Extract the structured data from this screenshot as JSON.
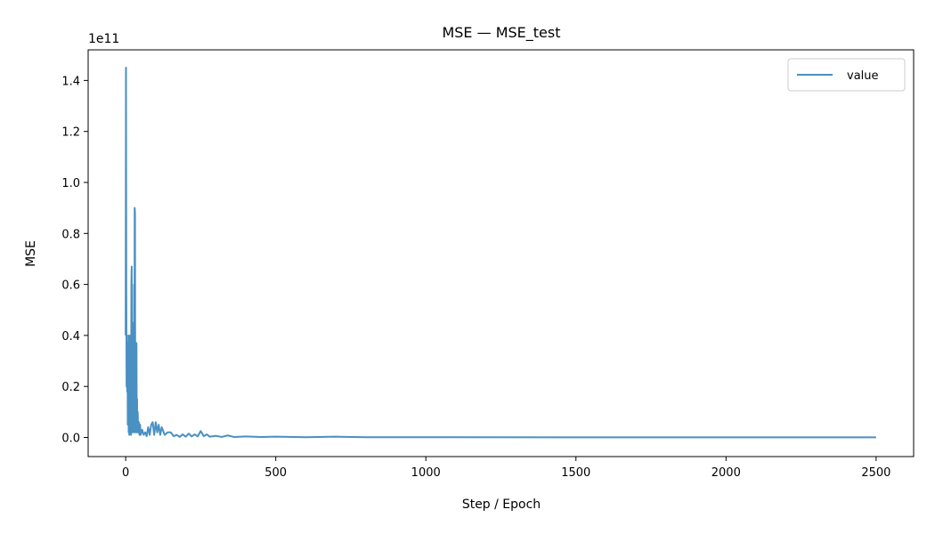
{
  "chart_data": {
    "type": "line",
    "title": "MSE — MSE_test",
    "xlabel": "Step / Epoch",
    "ylabel": "MSE",
    "offset_text": "1e11",
    "x_ticks": [
      0,
      500,
      1000,
      1500,
      2000,
      2500
    ],
    "y_ticks": [
      0.0,
      0.2,
      0.4,
      0.6,
      0.8,
      1.0,
      1.2,
      1.4
    ],
    "y_tick_labels": [
      "0.0",
      "0.2",
      "0.4",
      "0.6",
      "0.8",
      "1.0",
      "1.2",
      "1.4"
    ],
    "xlim": [
      -125,
      2625
    ],
    "ylim": [
      -0.075,
      1.52
    ],
    "grid": false,
    "legend_position": "top-right",
    "series": [
      {
        "name": "value",
        "color": "#4a90c2",
        "points": [
          [
            0,
            0.4
          ],
          [
            1,
            1.45
          ],
          [
            2,
            0.6
          ],
          [
            3,
            0.2
          ],
          [
            4,
            0.3
          ],
          [
            5,
            0.18
          ],
          [
            6,
            0.37
          ],
          [
            7,
            0.05
          ],
          [
            8,
            0.1
          ],
          [
            9,
            0.4
          ],
          [
            10,
            0.02
          ],
          [
            11,
            0.3
          ],
          [
            12,
            0.01
          ],
          [
            13,
            0.22
          ],
          [
            14,
            0.02
          ],
          [
            15,
            0.4
          ],
          [
            16,
            0.03
          ],
          [
            17,
            0.25
          ],
          [
            18,
            0.01
          ],
          [
            19,
            0.6
          ],
          [
            20,
            0.67
          ],
          [
            21,
            0.05
          ],
          [
            22,
            0.45
          ],
          [
            23,
            0.02
          ],
          [
            24,
            0.3
          ],
          [
            25,
            0.05
          ],
          [
            26,
            0.15
          ],
          [
            27,
            0.02
          ],
          [
            28,
            0.6
          ],
          [
            29,
            0.05
          ],
          [
            30,
            0.9
          ],
          [
            31,
            0.88
          ],
          [
            32,
            0.02
          ],
          [
            33,
            0.3
          ],
          [
            34,
            0.02
          ],
          [
            35,
            0.35
          ],
          [
            36,
            0.37
          ],
          [
            37,
            0.02
          ],
          [
            38,
            0.15
          ],
          [
            39,
            0.02
          ],
          [
            40,
            0.1
          ],
          [
            42,
            0.02
          ],
          [
            44,
            0.06
          ],
          [
            46,
            0.01
          ],
          [
            48,
            0.05
          ],
          [
            50,
            0.01
          ],
          [
            55,
            0.03
          ],
          [
            60,
            0.01
          ],
          [
            65,
            0.02
          ],
          [
            70,
            0.005
          ],
          [
            75,
            0.04
          ],
          [
            80,
            0.01
          ],
          [
            85,
            0.05
          ],
          [
            90,
            0.06
          ],
          [
            95,
            0.01
          ],
          [
            100,
            0.06
          ],
          [
            105,
            0.02
          ],
          [
            110,
            0.05
          ],
          [
            115,
            0.01
          ],
          [
            120,
            0.04
          ],
          [
            130,
            0.01
          ],
          [
            140,
            0.02
          ],
          [
            150,
            0.02
          ],
          [
            160,
            0.005
          ],
          [
            170,
            0.01
          ],
          [
            180,
            0.002
          ],
          [
            190,
            0.012
          ],
          [
            200,
            0.003
          ],
          [
            210,
            0.015
          ],
          [
            220,
            0.004
          ],
          [
            230,
            0.012
          ],
          [
            240,
            0.004
          ],
          [
            250,
            0.025
          ],
          [
            260,
            0.005
          ],
          [
            270,
            0.012
          ],
          [
            280,
            0.003
          ],
          [
            300,
            0.006
          ],
          [
            320,
            0.002
          ],
          [
            340,
            0.008
          ],
          [
            360,
            0.002
          ],
          [
            400,
            0.004
          ],
          [
            450,
            0.002
          ],
          [
            500,
            0.003
          ],
          [
            600,
            0.001
          ],
          [
            700,
            0.003
          ],
          [
            800,
            0.001
          ],
          [
            1000,
            0.001
          ],
          [
            1500,
            0.0005
          ],
          [
            2000,
            0.0005
          ],
          [
            2500,
            0.0005
          ]
        ]
      }
    ]
  }
}
